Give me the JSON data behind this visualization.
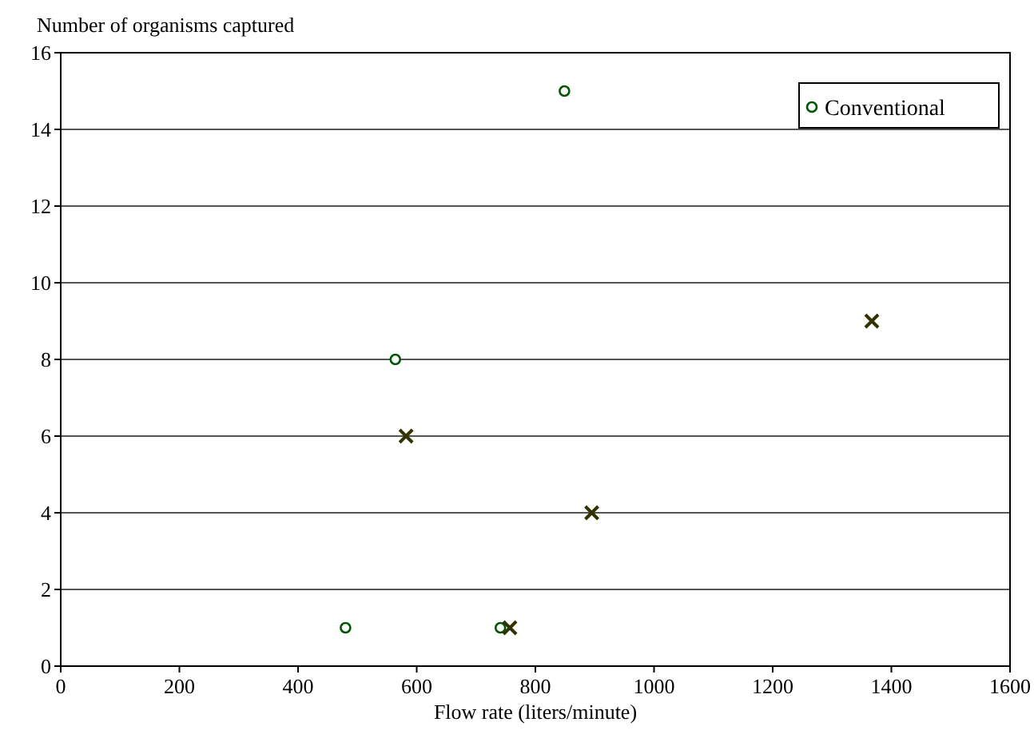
{
  "chart_data": {
    "type": "scatter",
    "ylabel": "Number of organisms captured",
    "xlabel": "Flow rate (liters/minute)",
    "xlim": [
      0,
      1600
    ],
    "xticks": [
      0,
      200,
      400,
      600,
      800,
      1000,
      1200,
      1400,
      1600
    ],
    "ylim": [
      0,
      16
    ],
    "yticks": [
      0,
      2,
      4,
      6,
      8,
      10,
      12,
      14,
      16
    ],
    "grid": "y",
    "legend": "top right",
    "series": [
      {
        "name": "Conventional",
        "color": "#005500",
        "marker": "circle",
        "x": [
          480,
          564,
          849,
          741
        ],
        "values": [
          1,
          8,
          15,
          1
        ]
      },
      {
        "color": "#333300",
        "marker": "cross",
        "x": [
          582,
          895,
          1367,
          757
        ],
        "values": [
          6,
          4,
          9,
          1
        ]
      }
    ]
  }
}
